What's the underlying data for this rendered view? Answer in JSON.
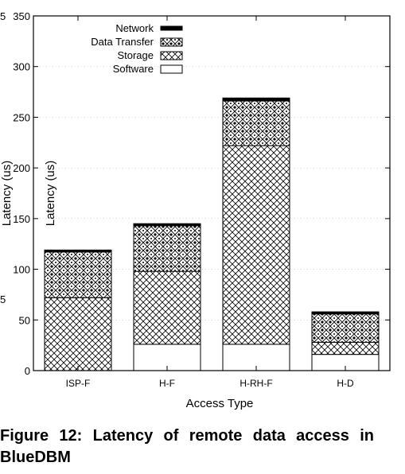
{
  "chart_data": {
    "type": "bar",
    "stacked": true,
    "xlabel": "Access Type",
    "ylabel": "Latency (us)",
    "ylim": [
      0,
      350
    ],
    "yticks": [
      0,
      50,
      100,
      150,
      200,
      250,
      300,
      350
    ],
    "categories": [
      "ISP-F",
      "H-F",
      "H-RH-F",
      "H-D"
    ],
    "series": [
      {
        "name": "Software",
        "values": [
          0,
          26,
          26,
          16
        ],
        "pattern": "blank"
      },
      {
        "name": "Storage",
        "values": [
          72,
          72,
          196,
          12
        ],
        "pattern": "crosshatch"
      },
      {
        "name": "Data Transfer",
        "values": [
          45,
          45,
          44,
          28
        ],
        "pattern": "diamond"
      },
      {
        "name": "Network",
        "values": [
          2,
          2,
          3,
          2
        ],
        "pattern": "solid"
      }
    ],
    "legend_order": [
      "Network",
      "Data Transfer",
      "Storage",
      "Software"
    ],
    "legend_position": "top-left",
    "grid": true,
    "clipped_labels": {
      "ylabel_fragment": "Latency (us)",
      "left_tick_top": "5",
      "left_tick_mid": "5"
    }
  },
  "caption": "Figure 12: Latency of remote data access in BlueDBM"
}
